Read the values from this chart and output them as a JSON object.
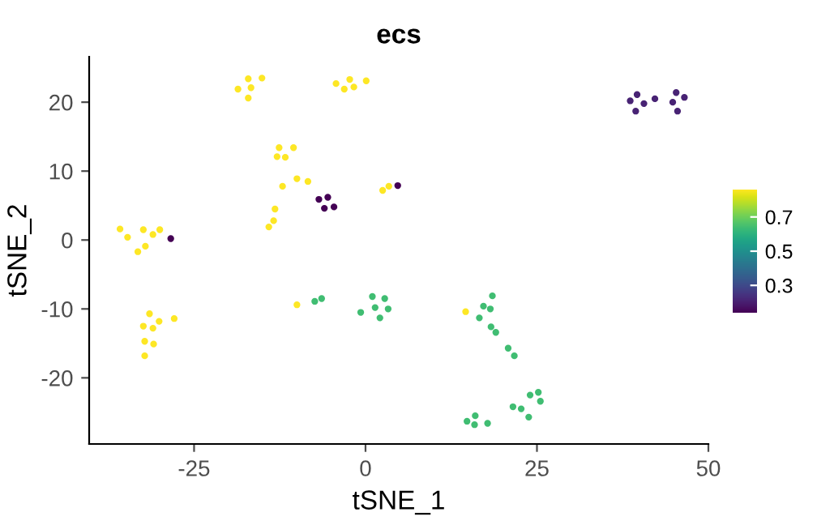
{
  "chart_data": {
    "type": "scatter",
    "title": "ecs",
    "xlabel": "tSNE_1",
    "ylabel": "tSNE_2",
    "xlim": [
      -40.3,
      50
    ],
    "ylim": [
      -29.6,
      26.6
    ],
    "xticks": [
      -25,
      0,
      25,
      50
    ],
    "yticks": [
      -20,
      -10,
      0,
      10,
      20
    ],
    "clim": [
      0.14,
      0.86
    ],
    "cticks": [
      0.3,
      0.5,
      0.7
    ],
    "grid": false,
    "legend": false,
    "marker": "circle",
    "series": [
      {
        "x": [
          -18.6,
          -17.1,
          -16.7,
          -15.1,
          -17.1,
          -4.3,
          -3.1,
          -2.3,
          -1.7,
          0.1,
          -12.6,
          -10.5,
          -12.9,
          -11.7,
          -10.0,
          -8.4,
          -12.1,
          -13.2,
          -13.4,
          -14.1,
          2.5,
          3.4,
          -35.8,
          -34.7,
          -32.4,
          -31.0,
          -30.0,
          -32.1,
          -33.2,
          -31.5,
          -32.4,
          -31.0,
          -30.1,
          -27.9,
          -32.2,
          -30.9,
          -32.2,
          -10.0,
          14.6
        ],
        "values": [
          21.9,
          23.4,
          22.1,
          23.5,
          20.6,
          22.7,
          21.9,
          23.3,
          22.2,
          23.1,
          13.4,
          13.4,
          12.1,
          12.0,
          8.9,
          8.5,
          7.8,
          4.5,
          2.8,
          1.9,
          7.2,
          7.8,
          1.6,
          0.4,
          1.5,
          0.8,
          1.5,
          -0.9,
          -1.7,
          -10.7,
          -12.5,
          -12.8,
          -11.8,
          -11.4,
          -14.7,
          -15.1,
          -16.8,
          -9.4,
          -10.4
        ],
        "cvalues": [
          0.86,
          0.86,
          0.86,
          0.86,
          0.86,
          0.86,
          0.86,
          0.86,
          0.86,
          0.86,
          0.86,
          0.86,
          0.86,
          0.86,
          0.86,
          0.86,
          0.86,
          0.86,
          0.86,
          0.86,
          0.86,
          0.86,
          0.86,
          0.86,
          0.86,
          0.86,
          0.86,
          0.86,
          0.86,
          0.86,
          0.86,
          0.86,
          0.86,
          0.86,
          0.86,
          0.86,
          0.86,
          0.86,
          0.86
        ]
      },
      {
        "x": [
          -6.8,
          -5.5,
          -6.0,
          -4.6,
          4.7,
          -28.4
        ],
        "values": [
          5.9,
          6.2,
          4.6,
          4.8,
          7.9,
          0.2
        ],
        "cvalues": [
          0.14,
          0.14,
          0.14,
          0.14,
          0.14,
          0.14
        ]
      },
      {
        "x": [
          38.6,
          39.6,
          40.6,
          39.4,
          42.2,
          44.8,
          45.3,
          46.5,
          45.5
        ],
        "values": [
          20.2,
          21.1,
          19.8,
          18.7,
          20.5,
          20.0,
          21.4,
          20.7,
          18.7
        ],
        "cvalues": [
          0.21,
          0.21,
          0.21,
          0.21,
          0.21,
          0.21,
          0.21,
          0.21,
          0.21
        ]
      },
      {
        "x": [
          -7.4,
          -6.4,
          -0.7,
          1.0,
          1.4,
          2.8,
          2.1,
          3.3,
          18.5,
          17.2,
          18.2,
          16.6,
          18.3,
          19.0,
          20.8,
          21.7,
          21.5,
          22.7,
          24.0,
          25.2,
          25.5,
          23.8,
          14.8,
          16.0,
          15.9,
          17.8
        ],
        "values": [
          -8.9,
          -8.5,
          -10.5,
          -8.2,
          -9.8,
          -8.5,
          -11.3,
          -10.0,
          -8.1,
          -9.6,
          -10.0,
          -11.3,
          -12.6,
          -13.4,
          -15.7,
          -16.8,
          -24.2,
          -24.5,
          -22.5,
          -22.1,
          -23.4,
          -25.7,
          -26.3,
          -25.5,
          -26.8,
          -26.6
        ],
        "cvalues": [
          0.64,
          0.64,
          0.64,
          0.64,
          0.64,
          0.64,
          0.64,
          0.64,
          0.64,
          0.64,
          0.64,
          0.64,
          0.64,
          0.64,
          0.64,
          0.64,
          0.64,
          0.64,
          0.64,
          0.64,
          0.64,
          0.64,
          0.64,
          0.64,
          0.64,
          0.64
        ]
      }
    ]
  }
}
